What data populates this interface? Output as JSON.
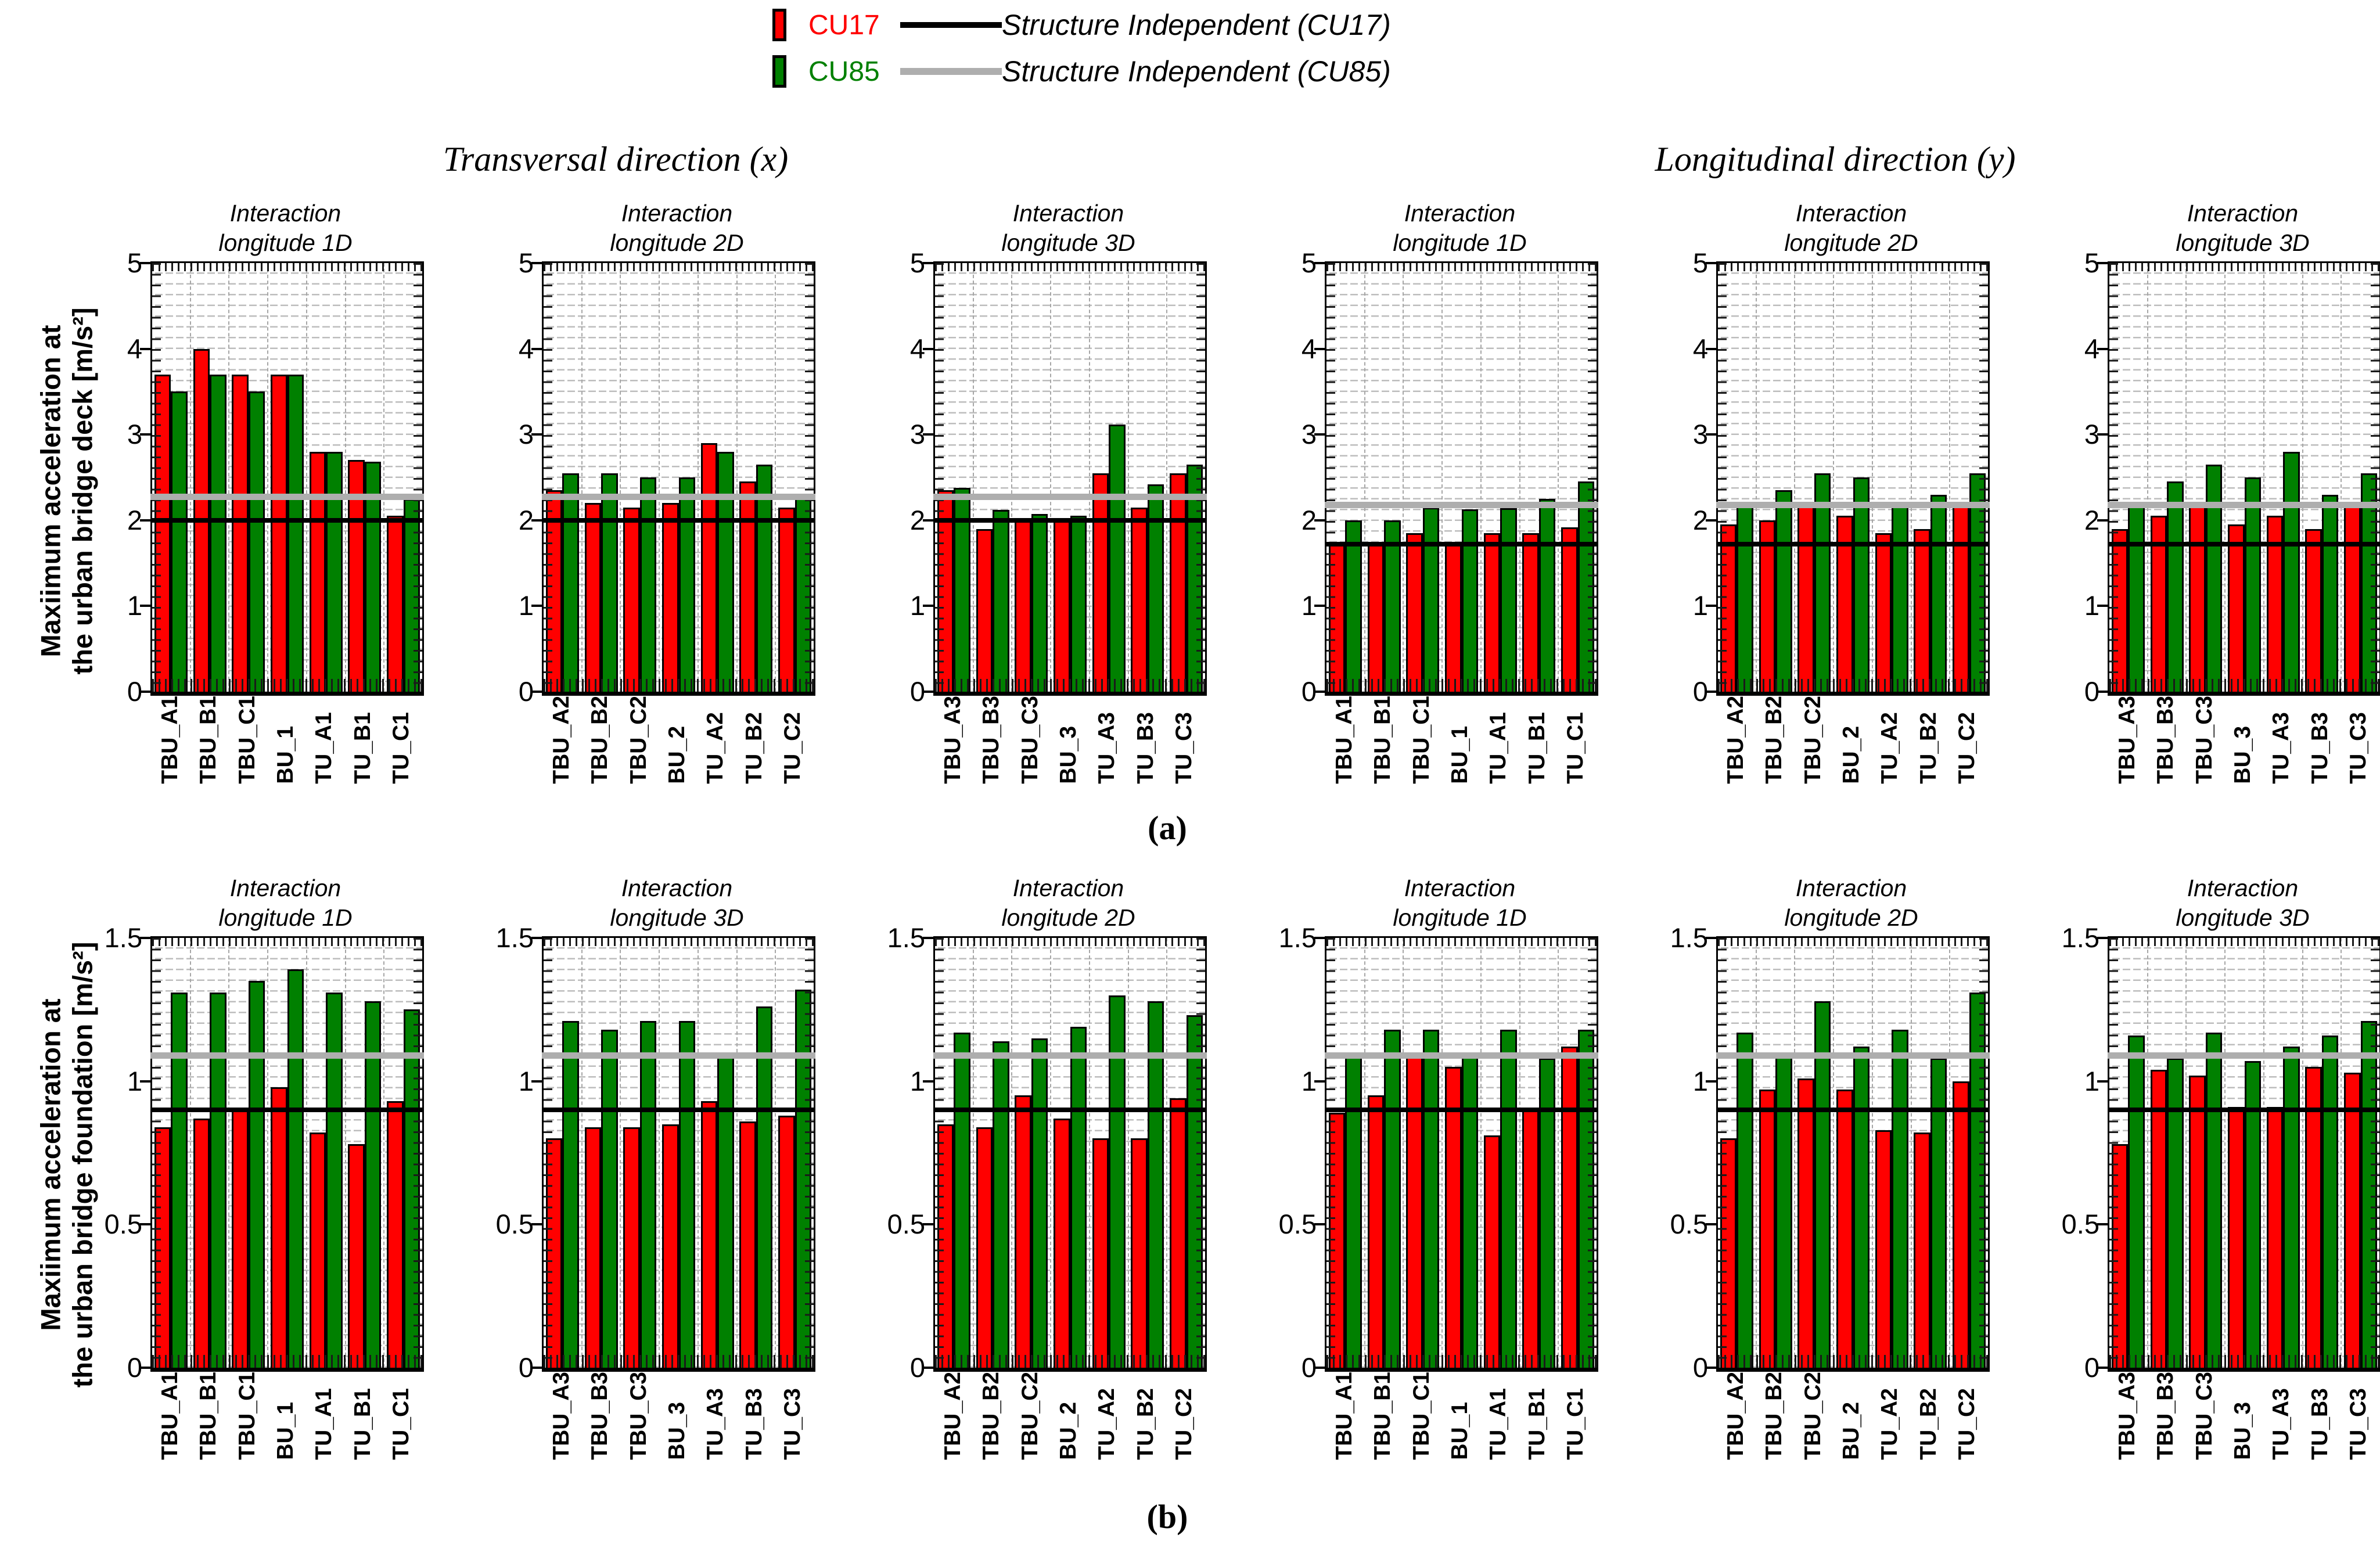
{
  "legend": {
    "cu17_label": "CU17",
    "cu85_label": "CU85",
    "si_cu17_label": "Structure Independent (CU17)",
    "si_cu85_label": "Structure Independent (CU85)",
    "cu17_color": "#ff0000",
    "cu85_color": "#008000",
    "si_cu17_color": "#000000",
    "si_cu85_color": "#aeaeae"
  },
  "headers": {
    "left": "Transversal direction (x)",
    "right": "Longitudinal direction (y)"
  },
  "panel_labels": {
    "a": "(a)",
    "b": "(b)"
  },
  "axis_labels": {
    "row_a_line1": "Maxiimum acceleration at",
    "row_a_line2": "the urban bridge deck [m/s²]",
    "row_b_line1": "Maxiimum acceleration at",
    "row_b_line2": "the urban bridge foundation [m/s²]"
  },
  "chart_data": [
    {
      "type": "bar",
      "row": "a",
      "direction": "transversal",
      "title_line1": "Interaction",
      "title_line2": "longitude 1D",
      "categories": [
        "TBU_A1",
        "TBU_B1",
        "TBU_C1",
        "BU_1",
        "TU_A1",
        "TU_B1",
        "TU_C1"
      ],
      "series": [
        {
          "name": "CU17",
          "color": "#ff0000",
          "values": [
            3.7,
            4.0,
            3.7,
            3.7,
            2.8,
            2.7,
            2.05
          ]
        },
        {
          "name": "CU85",
          "color": "#008000",
          "values": [
            3.5,
            3.7,
            3.5,
            3.7,
            2.8,
            2.68,
            2.25
          ]
        }
      ],
      "lines": [
        {
          "name": "Structure Independent (CU17)",
          "value": 2.0,
          "color": "black"
        },
        {
          "name": "Structure Independent (CU85)",
          "value": 2.27,
          "color": "gray"
        }
      ],
      "ylim": [
        0,
        5
      ],
      "yticks": [
        "0",
        "1",
        "2",
        "3",
        "4",
        "5"
      ],
      "grid": "dashed-minor"
    },
    {
      "type": "bar",
      "row": "a",
      "direction": "transversal",
      "title_line1": "Interaction",
      "title_line2": "longitude 2D",
      "categories": [
        "TBU_A2",
        "TBU_B2",
        "TBU_C2",
        "BU_2",
        "TU_A2",
        "TU_B2",
        "TU_C2"
      ],
      "series": [
        {
          "name": "CU17",
          "color": "#ff0000",
          "values": [
            2.35,
            2.2,
            2.15,
            2.2,
            2.9,
            2.45,
            2.15
          ]
        },
        {
          "name": "CU85",
          "color": "#008000",
          "values": [
            2.55,
            2.55,
            2.5,
            2.5,
            2.8,
            2.65,
            2.28
          ]
        }
      ],
      "lines": [
        {
          "name": "Structure Independent (CU17)",
          "value": 2.0,
          "color": "black"
        },
        {
          "name": "Structure Independent (CU85)",
          "value": 2.27,
          "color": "gray"
        }
      ],
      "ylim": [
        0,
        5
      ],
      "yticks": [
        "0",
        "1",
        "2",
        "3",
        "4",
        "5"
      ],
      "grid": "dashed-minor"
    },
    {
      "type": "bar",
      "row": "a",
      "direction": "transversal",
      "title_line1": "Interaction",
      "title_line2": "longitude 3D",
      "categories": [
        "TBU_A3",
        "TBU_B3",
        "TBU_C3",
        "BU_3",
        "TU_A3",
        "TU_B3",
        "TU_C3"
      ],
      "series": [
        {
          "name": "CU17",
          "color": "#ff0000",
          "values": [
            2.35,
            1.9,
            2.0,
            2.0,
            2.55,
            2.15,
            2.55
          ]
        },
        {
          "name": "CU85",
          "color": "#008000",
          "values": [
            2.38,
            2.12,
            2.07,
            2.05,
            3.12,
            2.42,
            2.65
          ]
        }
      ],
      "lines": [
        {
          "name": "Structure Independent (CU17)",
          "value": 2.0,
          "color": "black"
        },
        {
          "name": "Structure Independent (CU85)",
          "value": 2.27,
          "color": "gray"
        }
      ],
      "ylim": [
        0,
        5
      ],
      "yticks": [
        "0",
        "1",
        "2",
        "3",
        "4",
        "5"
      ],
      "grid": "dashed-minor"
    },
    {
      "type": "bar",
      "row": "a",
      "direction": "longitudinal",
      "title_line1": "Interaction",
      "title_line2": "longitude 1D",
      "categories": [
        "TBU_A1",
        "TBU_B1",
        "TBU_C1",
        "BU_1",
        "TU_A1",
        "TU_B1",
        "TU_C1"
      ],
      "series": [
        {
          "name": "CU17",
          "color": "#ff0000",
          "values": [
            1.74,
            1.72,
            1.85,
            1.75,
            1.85,
            1.85,
            1.92
          ]
        },
        {
          "name": "CU85",
          "color": "#008000",
          "values": [
            2.0,
            2.0,
            2.15,
            2.13,
            2.14,
            2.25,
            2.45
          ]
        }
      ],
      "lines": [
        {
          "name": "Structure Independent (CU17)",
          "value": 1.72,
          "color": "black"
        },
        {
          "name": "Structure Independent (CU85)",
          "value": 2.18,
          "color": "gray"
        }
      ],
      "ylim": [
        0,
        5
      ],
      "yticks": [
        "0",
        "1",
        "2",
        "3",
        "4",
        "5"
      ],
      "grid": "dashed-minor"
    },
    {
      "type": "bar",
      "row": "a",
      "direction": "longitudinal",
      "title_line1": "Interaction",
      "title_line2": "longitude 2D",
      "categories": [
        "TBU_A2",
        "TBU_B2",
        "TBU_C2",
        "BU_2",
        "TU_A2",
        "TU_B2",
        "TU_C2"
      ],
      "series": [
        {
          "name": "CU17",
          "color": "#ff0000",
          "values": [
            1.95,
            2.0,
            2.2,
            2.05,
            1.85,
            1.9,
            2.2
          ]
        },
        {
          "name": "CU85",
          "color": "#008000",
          "values": [
            2.18,
            2.35,
            2.55,
            2.5,
            2.2,
            2.3,
            2.55
          ]
        }
      ],
      "lines": [
        {
          "name": "Structure Independent (CU17)",
          "value": 1.72,
          "color": "black"
        },
        {
          "name": "Structure Independent (CU85)",
          "value": 2.18,
          "color": "gray"
        }
      ],
      "ylim": [
        0,
        5
      ],
      "yticks": [
        "0",
        "1",
        "2",
        "3",
        "4",
        "5"
      ],
      "grid": "dashed-minor"
    },
    {
      "type": "bar",
      "row": "a",
      "direction": "longitudinal",
      "title_line1": "Interaction",
      "title_line2": "longitude 3D",
      "categories": [
        "TBU_A3",
        "TBU_B3",
        "TBU_C3",
        "BU_3",
        "TU_A3",
        "TU_B3",
        "TU_C3"
      ],
      "series": [
        {
          "name": "CU17",
          "color": "#ff0000",
          "values": [
            1.9,
            2.05,
            2.2,
            1.95,
            2.05,
            1.9,
            2.2
          ]
        },
        {
          "name": "CU85",
          "color": "#008000",
          "values": [
            2.2,
            2.45,
            2.65,
            2.5,
            2.8,
            2.3,
            2.55
          ]
        }
      ],
      "lines": [
        {
          "name": "Structure Independent (CU17)",
          "value": 1.72,
          "color": "black"
        },
        {
          "name": "Structure Independent (CU85)",
          "value": 2.18,
          "color": "gray"
        }
      ],
      "ylim": [
        0,
        5
      ],
      "yticks": [
        "0",
        "1",
        "2",
        "3",
        "4",
        "5"
      ],
      "grid": "dashed-minor"
    },
    {
      "type": "bar",
      "row": "b",
      "direction": "transversal",
      "title_line1": "Interaction",
      "title_line2": "longitude 1D",
      "categories": [
        "TBU_A1",
        "TBU_B1",
        "TBU_C1",
        "BU_1",
        "TU_A1",
        "TU_B1",
        "TU_C1"
      ],
      "series": [
        {
          "name": "CU17",
          "color": "#ff0000",
          "values": [
            0.84,
            0.87,
            0.9,
            0.98,
            0.82,
            0.78,
            0.93
          ]
        },
        {
          "name": "CU85",
          "color": "#008000",
          "values": [
            1.31,
            1.31,
            1.35,
            1.39,
            1.31,
            1.28,
            1.25
          ]
        }
      ],
      "lines": [
        {
          "name": "Structure Independent (CU17)",
          "value": 0.9,
          "color": "black"
        },
        {
          "name": "Structure Independent (CU85)",
          "value": 1.09,
          "color": "gray"
        }
      ],
      "ylim": [
        0,
        1.5
      ],
      "yticks": [
        "0",
        "0.5",
        "1",
        "1.5"
      ],
      "grid": "dashed-minor"
    },
    {
      "type": "bar",
      "row": "b",
      "direction": "transversal",
      "title_line1": "Interaction",
      "title_line2": "longitude 3D",
      "categories": [
        "TBU_A3",
        "TBU_B3",
        "TBU_C3",
        "BU_3",
        "TU_A3",
        "TU_B3",
        "TU_C3"
      ],
      "series": [
        {
          "name": "CU17",
          "color": "#ff0000",
          "values": [
            0.8,
            0.84,
            0.84,
            0.85,
            0.93,
            0.86,
            0.88
          ]
        },
        {
          "name": "CU85",
          "color": "#008000",
          "values": [
            1.21,
            1.18,
            1.21,
            1.21,
            1.1,
            1.26,
            1.32
          ]
        }
      ],
      "lines": [
        {
          "name": "Structure Independent (CU17)",
          "value": 0.9,
          "color": "black"
        },
        {
          "name": "Structure Independent (CU85)",
          "value": 1.09,
          "color": "gray"
        }
      ],
      "ylim": [
        0,
        1.5
      ],
      "yticks": [
        "0",
        "0.5",
        "1",
        "1.5"
      ],
      "grid": "dashed-minor"
    },
    {
      "type": "bar",
      "row": "b",
      "direction": "transversal",
      "title_line1": "Interaction",
      "title_line2": "longitude 2D",
      "categories": [
        "TBU_A2",
        "TBU_B2",
        "TBU_C2",
        "BU_2",
        "TU_A2",
        "TU_B2",
        "TU_C2"
      ],
      "series": [
        {
          "name": "CU17",
          "color": "#ff0000",
          "values": [
            0.85,
            0.84,
            0.95,
            0.87,
            0.8,
            0.8,
            0.94
          ]
        },
        {
          "name": "CU85",
          "color": "#008000",
          "values": [
            1.17,
            1.14,
            1.15,
            1.19,
            1.3,
            1.28,
            1.23
          ]
        }
      ],
      "lines": [
        {
          "name": "Structure Independent (CU17)",
          "value": 0.9,
          "color": "black"
        },
        {
          "name": "Structure Independent (CU85)",
          "value": 1.09,
          "color": "gray"
        }
      ],
      "ylim": [
        0,
        1.5
      ],
      "yticks": [
        "0",
        "0.5",
        "1",
        "1.5"
      ],
      "grid": "dashed-minor"
    },
    {
      "type": "bar",
      "row": "b",
      "direction": "longitudinal",
      "title_line1": "Interaction",
      "title_line2": "longitude 1D",
      "categories": [
        "TBU_A1",
        "TBU_B1",
        "TBU_C1",
        "BU_1",
        "TU_A1",
        "TU_B1",
        "TU_C1"
      ],
      "series": [
        {
          "name": "CU17",
          "color": "#ff0000",
          "values": [
            0.89,
            0.95,
            1.09,
            1.05,
            0.81,
            0.9,
            1.12
          ]
        },
        {
          "name": "CU85",
          "color": "#008000",
          "values": [
            1.09,
            1.18,
            1.18,
            1.09,
            1.18,
            1.08,
            1.18
          ]
        }
      ],
      "lines": [
        {
          "name": "Structure Independent (CU17)",
          "value": 0.9,
          "color": "black"
        },
        {
          "name": "Structure Independent (CU85)",
          "value": 1.09,
          "color": "gray"
        }
      ],
      "ylim": [
        0,
        1.5
      ],
      "yticks": [
        "0",
        "0.5",
        "1",
        "1.5"
      ],
      "grid": "dashed-minor"
    },
    {
      "type": "bar",
      "row": "b",
      "direction": "longitudinal",
      "title_line1": "Interaction",
      "title_line2": "longitude 2D",
      "categories": [
        "TBU_A2",
        "TBU_B2",
        "TBU_C2",
        "BU_2",
        "TU_A2",
        "TU_B2",
        "TU_C2"
      ],
      "series": [
        {
          "name": "CU17",
          "color": "#ff0000",
          "values": [
            0.8,
            0.97,
            1.01,
            0.97,
            0.83,
            0.82,
            1.0
          ]
        },
        {
          "name": "CU85",
          "color": "#008000",
          "values": [
            1.17,
            1.09,
            1.28,
            1.12,
            1.18,
            1.08,
            1.31
          ]
        }
      ],
      "lines": [
        {
          "name": "Structure Independent (CU17)",
          "value": 0.9,
          "color": "black"
        },
        {
          "name": "Structure Independent (CU85)",
          "value": 1.09,
          "color": "gray"
        }
      ],
      "ylim": [
        0,
        1.5
      ],
      "yticks": [
        "0",
        "0.5",
        "1",
        "1.5"
      ],
      "grid": "dashed-minor"
    },
    {
      "type": "bar",
      "row": "b",
      "direction": "longitudinal",
      "title_line1": "Interaction",
      "title_line2": "longitude 3D",
      "categories": [
        "TBU_A3",
        "TBU_B3",
        "TBU_C3",
        "BU_3",
        "TU_A3",
        "TU_B3",
        "TU_C3"
      ],
      "series": [
        {
          "name": "CU17",
          "color": "#ff0000",
          "values": [
            0.78,
            1.04,
            1.02,
            0.91,
            0.91,
            1.05,
            1.03
          ]
        },
        {
          "name": "CU85",
          "color": "#008000",
          "values": [
            1.16,
            1.08,
            1.17,
            1.07,
            1.12,
            1.16,
            1.21
          ]
        }
      ],
      "lines": [
        {
          "name": "Structure Independent (CU17)",
          "value": 0.9,
          "color": "black"
        },
        {
          "name": "Structure Independent (CU85)",
          "value": 1.09,
          "color": "gray"
        }
      ],
      "ylim": [
        0,
        1.5
      ],
      "yticks": [
        "0",
        "0.5",
        "1",
        "1.5"
      ],
      "grid": "dashed-minor"
    }
  ]
}
